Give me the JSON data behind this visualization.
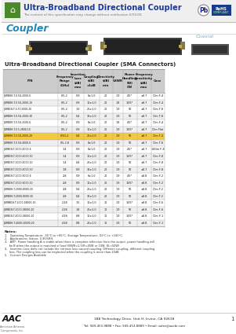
{
  "title": "Ultra-Broadband Directional Coupler",
  "subtitle": "The content of this specification may change without notification 6/01/09",
  "section_title": "Coupler",
  "coaxial_label": "Coaxial",
  "product_subtitle": "Ultra-Broadband Directional Coupler (SMA Connectors)",
  "table_rows": [
    [
      "JXWBOH-T-0.5G-2000-6",
      "0.5-2",
      "0.9",
      "6±1.0",
      "20",
      "1.9",
      "4/5*",
      "±0.7",
      "Clm F-4"
    ],
    [
      "JXWBOH-T-0.5G-2000-10",
      "0.5-2",
      "0.9",
      "10±1.0",
      "20",
      "1.8",
      "10/5*",
      "±0.7",
      "Clm F-4"
    ],
    [
      "JXWBCH-T-0.5T-2000-20",
      "0.5-2",
      "1.0",
      "20±1.0",
      "20",
      "1.9",
      "50",
      "±0.7",
      "Clm T-8"
    ],
    [
      "JXWBOH-T-0.5G-2000-30",
      "0.5-2",
      "0.4",
      "30±1.0",
      "20",
      "1.9",
      "50",
      "±0.7",
      "Clm T-8"
    ],
    [
      "JXWBOH-T-0.5G-2500-6",
      "0.5-2",
      "0.9",
      "6±1.0",
      "20",
      "1.8",
      "4/5*",
      "±0.7",
      "Clm F-4"
    ],
    [
      "JXWBOH-T-0.5-2800-10",
      "0.5-2",
      "0.9",
      "10±1.0",
      "20",
      "1.9",
      "10/5*",
      "±0.7",
      "Clm Flat"
    ],
    [
      "JXWBOH-T-0.5G-2000-20",
      "0.5G-2",
      "0.4",
      "20±1.0",
      "20",
      "1.9",
      "50",
      "±0.7",
      "Clm T-4"
    ],
    [
      "JXWBOH-T-0.5G-4000-6",
      "0.5-2.8",
      "0.9",
      "6±1.0",
      "20",
      "1.9",
      "50",
      "±0.7",
      "Clm T-8"
    ],
    [
      "JXWBCH-T-1000-4000-6",
      "1-4",
      "0.9",
      "6±1.0",
      "20",
      "1.9",
      "4/5*",
      "±0.7",
      "10Gm F-8"
    ],
    [
      "JXWBCH-T-1000-4000-10",
      "1-4",
      "0.9",
      "10±1.0",
      "20",
      "1.9",
      "10/5*",
      "±0.7",
      "Clm F-8"
    ],
    [
      "JXWBCH-T-1000-4000-20",
      "1-4",
      "0.4",
      "20±1.0",
      "20",
      "1.9",
      "50",
      "±0.7",
      "Clm F-8"
    ],
    [
      "JXWBCH-T-1000-4000-30",
      "1-8",
      "0.9",
      "30±1.0",
      "20",
      "1.9",
      "50",
      "±0.7",
      "Clm F-8"
    ],
    [
      "JXWBCH-T-2000-8000-6",
      "2-8",
      "0.9",
      "6±1.0",
      "20",
      "1.9",
      "4/5*",
      "±0.8",
      "Clm F-2"
    ],
    [
      "JXWBCH-T-2000-8000-10",
      "2-8",
      "0.9",
      "10±1.0",
      "20",
      "1.9",
      "10/5*",
      "±0.8",
      "Clm F-2"
    ],
    [
      "JXWBOH-T-2000-8000-20",
      "2-8",
      "0.4",
      "20±1.0",
      "20",
      "1.9",
      "50",
      "±0.8",
      "Clm T-2"
    ],
    [
      "JXWBOH-T-2000-8000-30",
      "2-8",
      "0.4",
      "30±1.0",
      "20",
      "1.9",
      "50",
      "±0.8",
      "Clm T-2"
    ],
    [
      "JXWBBCH-T-2000-18000-10",
      "2-18",
      "1.5",
      "10±1.0",
      "10",
      "1.9",
      "10/5*",
      "±0.8",
      "Clm F-6"
    ],
    [
      "JXWBCH-T-2000-18000-20",
      "2-18",
      "1.8",
      "20±1.0",
      "10",
      "1.9",
      "50",
      "±0.8",
      "Clm F-6"
    ],
    [
      "JXWBCH-T-4000-18000-10",
      "4-18",
      "0.8",
      "10±1.0",
      "10",
      "1.9",
      "10/5*",
      "±0.8",
      "Clm F-1"
    ],
    [
      "JXWBOH-T-4000-18000-20",
      "4-18",
      "0.8",
      "20±1.0",
      "10",
      "1.9",
      "50",
      "±0.8",
      "Clm F-1"
    ]
  ],
  "highlight_row_idx": 6,
  "highlight_color": "#f5c842",
  "bg_color": "#ffffff",
  "header_bg": "#cccccc",
  "table_line_color": "#aaaaaa",
  "title_color": "#1a3a9a",
  "coupler_title_color": "#2288bb",
  "coaxial_color": "#7aaac8",
  "green_color": "#4a8a2a",
  "address": "188 Technology Drive, Unit H, Irvine, CA 92618",
  "contact": "Tel: 949-453-9888 • Fax: 949-453-8889 • Email: sales@aacbi.com",
  "page_num": "1"
}
